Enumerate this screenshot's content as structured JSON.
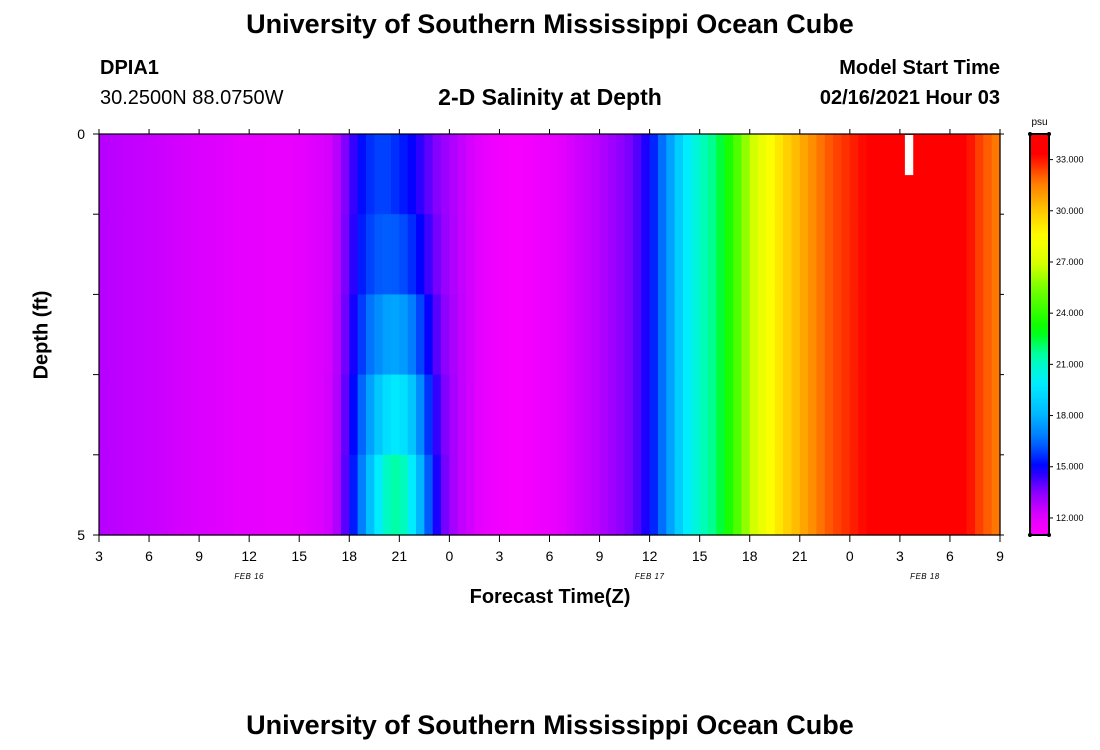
{
  "header": {
    "title": "University of Southern Mississippi Ocean Cube",
    "station_id": "DPIA1",
    "station_coords": "30.2500N 88.0750W",
    "subtitle": "2-D Salinity at Depth",
    "model_label": "Model Start Time",
    "model_time": "02/16/2021 Hour 03"
  },
  "footer": {
    "title": "University of Southern Mississippi Ocean Cube"
  },
  "chart_data": {
    "type": "heatmap",
    "title": "2-D Salinity at Depth",
    "xlabel": "Forecast Time(Z)",
    "ylabel": "Depth (ft)",
    "x_tick_labels": [
      "3",
      "6",
      "9",
      "12",
      "15",
      "18",
      "21",
      "0",
      "3",
      "6",
      "9",
      "12",
      "15",
      "18",
      "21",
      "0",
      "3",
      "6",
      "9"
    ],
    "date_labels": [
      {
        "label": "FEB 16",
        "tick_index": 3
      },
      {
        "label": "FEB 17",
        "tick_index": 11
      },
      {
        "label": "FEB 18",
        "tick_index": 16.5
      }
    ],
    "y_tick_labels": [
      "0",
      "5"
    ],
    "ylim": [
      0,
      5
    ],
    "colorbar": {
      "unit": "psu",
      "min": 11.0,
      "max": 34.5,
      "tick_values": [
        12.0,
        15.0,
        18.0,
        21.0,
        24.0,
        27.0,
        30.0,
        33.0
      ],
      "tick_labels": [
        "12.000",
        "15.000",
        "18.000",
        "21.000",
        "24.000",
        "27.000",
        "30.000",
        "33.000"
      ]
    },
    "time_start_hours": 3,
    "time_end_hours": 57,
    "depth_levels_ft": [
      0.25,
      0.75,
      1.25,
      1.75,
      2.25,
      2.75,
      3.25,
      3.75,
      4.25,
      4.75
    ],
    "surface_profile": [
      {
        "t": 3,
        "s": 12.8
      },
      {
        "t": 9,
        "s": 12.2
      },
      {
        "t": 14,
        "s": 11.8
      },
      {
        "t": 17,
        "s": 12.3
      },
      {
        "t": 18,
        "s": 14.0
      },
      {
        "t": 19,
        "s": 15.5
      },
      {
        "t": 20,
        "s": 16.0
      },
      {
        "t": 21,
        "s": 15.5
      },
      {
        "t": 22,
        "s": 14.5
      },
      {
        "t": 23,
        "s": 13.6
      },
      {
        "t": 25,
        "s": 12.4
      },
      {
        "t": 27,
        "s": 11.5
      },
      {
        "t": 28,
        "s": 11.3
      },
      {
        "t": 30,
        "s": 11.8
      },
      {
        "t": 33,
        "s": 12.8
      },
      {
        "t": 35,
        "s": 13.8
      },
      {
        "t": 36,
        "s": 15.0
      },
      {
        "t": 37,
        "s": 17.0
      },
      {
        "t": 38,
        "s": 19.5
      },
      {
        "t": 39,
        "s": 21.0
      },
      {
        "t": 40,
        "s": 22.0
      },
      {
        "t": 41,
        "s": 24.0
      },
      {
        "t": 42,
        "s": 26.5
      },
      {
        "t": 43,
        "s": 28.0
      },
      {
        "t": 44,
        "s": 29.5
      },
      {
        "t": 45,
        "s": 30.5
      },
      {
        "t": 46,
        "s": 31.5
      },
      {
        "t": 47,
        "s": 32.3
      },
      {
        "t": 49,
        "s": 33.2
      },
      {
        "t": 54,
        "s": 33.6
      },
      {
        "t": 55,
        "s": 33.2
      },
      {
        "t": 56,
        "s": 32.2
      },
      {
        "t": 57,
        "s": 31.5
      }
    ],
    "plume": {
      "center_t": 20.8,
      "width_t": 1.8,
      "max_s": 22.0
    },
    "missing_patch": {
      "t_start": 51.3,
      "t_end": 51.8,
      "depth_start": 0,
      "depth_end": 0.5
    }
  }
}
